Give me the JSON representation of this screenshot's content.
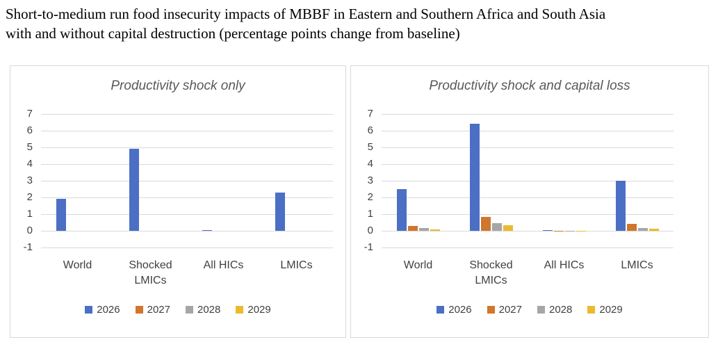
{
  "page": {
    "title_line1": "Short-to-medium run food insecurity impacts of MBBF in Eastern and Southern Africa and South Asia",
    "title_line2": "with and without capital destruction (percentage points change from baseline)"
  },
  "colors": {
    "series_2026": "#4b6fc4",
    "series_2027": "#d0762d",
    "series_2028": "#a6a6a6",
    "series_2029": "#eabb2e",
    "gridline": "#d9d9d9",
    "axis_text": "#404040",
    "chart_title_text": "#595959"
  },
  "chart_data": [
    {
      "type": "bar",
      "title": "Productivity shock only",
      "categories": [
        "World",
        "Shocked LMICs",
        "All HICs",
        "LMICs"
      ],
      "series": [
        {
          "name": "2026",
          "color": "#4b6fc4",
          "values": [
            1.9,
            4.9,
            0.05,
            2.3
          ]
        },
        {
          "name": "2027",
          "color": "#d0762d",
          "values": [
            0,
            0,
            0,
            0
          ]
        },
        {
          "name": "2028",
          "color": "#a6a6a6",
          "values": [
            0,
            0,
            0,
            0
          ]
        },
        {
          "name": "2029",
          "color": "#eabb2e",
          "values": [
            0,
            0,
            0,
            0
          ]
        }
      ],
      "xlabel": "",
      "ylabel": "",
      "ylim": [
        -1,
        7
      ],
      "yticks": [
        7,
        6,
        5,
        4,
        3,
        2,
        1,
        0,
        -1
      ],
      "grid": true,
      "legend_position": "bottom"
    },
    {
      "type": "bar",
      "title": "Productivity shock and capital loss",
      "categories": [
        "World",
        "Shocked LMICs",
        "All HICs",
        "LMICs"
      ],
      "series": [
        {
          "name": "2026",
          "color": "#4b6fc4",
          "values": [
            2.5,
            6.4,
            0.05,
            3.0
          ]
        },
        {
          "name": "2027",
          "color": "#d0762d",
          "values": [
            0.3,
            0.85,
            -0.04,
            0.4
          ]
        },
        {
          "name": "2028",
          "color": "#a6a6a6",
          "values": [
            0.15,
            0.45,
            -0.05,
            0.18
          ]
        },
        {
          "name": "2029",
          "color": "#eabb2e",
          "values": [
            0.08,
            0.35,
            -0.04,
            0.12
          ]
        }
      ],
      "xlabel": "",
      "ylabel": "",
      "ylim": [
        -1,
        7
      ],
      "yticks": [
        7,
        6,
        5,
        4,
        3,
        2,
        1,
        0,
        -1
      ],
      "grid": true,
      "legend_position": "bottom"
    }
  ]
}
